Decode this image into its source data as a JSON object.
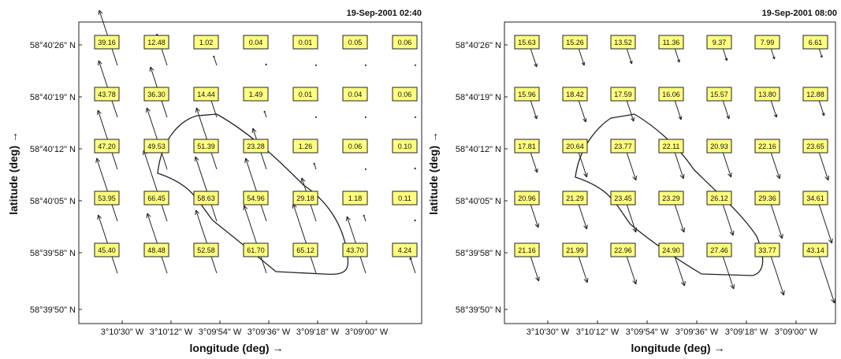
{
  "chart_data": [
    {
      "type": "quiver",
      "title": "19-Sep-2001 02:40",
      "xlabel": "longitude (deg) →",
      "ylabel": "latitude (deg) →",
      "xticks": [
        "3°10'30\" W",
        "3°10'12\" W",
        "3°09'54\" W",
        "3°09'36\" W",
        "3°09'18\" W",
        "3°09'00\" W"
      ],
      "yticks": [
        "58°40'26\" N",
        "58°40'19\" N",
        "58°40'12\" N",
        "58°40'05\" N",
        "58°39'58\" N",
        "58°39'50\" N"
      ],
      "grid_values": [
        [
          "39.16",
          "12.48",
          "1.02",
          "0.04",
          "0.01",
          "0.05",
          "0.06"
        ],
        [
          "43.78",
          "36.30",
          "14.44",
          "1.49",
          "0.01",
          "0.04",
          "0.06"
        ],
        [
          "47.20",
          "49.53",
          "51.39",
          "23.28",
          "1.26",
          "0.06",
          "0.10"
        ],
        [
          "53.95",
          "66.45",
          "58.63",
          "54.96",
          "29.18",
          "1.18",
          "0.11"
        ],
        [
          "45.40",
          "48.48",
          "52.58",
          "61.70",
          "65.12",
          "43.70",
          "4.24"
        ]
      ],
      "vector_direction": "north-west",
      "grid": false
    },
    {
      "type": "quiver",
      "title": "19-Sep-2001 08:00",
      "xlabel": "longitude (deg) →",
      "ylabel": "latitude (deg) →",
      "xticks": [
        "3°10'30\" W",
        "3°10'12\" W",
        "3°09'54\" W",
        "3°09'36\" W",
        "3°09'18\" W",
        "3°09'00\" W"
      ],
      "yticks": [
        "58°40'26\" N",
        "58°40'19\" N",
        "58°40'12\" N",
        "58°40'05\" N",
        "58°39'58\" N",
        "58°39'50\" N"
      ],
      "grid_values": [
        [
          "15.63",
          "15.26",
          "13.52",
          "11.36",
          "9.37",
          "7.99",
          "6.61"
        ],
        [
          "15.96",
          "18.42",
          "17.59",
          "16.06",
          "15.57",
          "13.80",
          "12.88"
        ],
        [
          "17.81",
          "20.64",
          "23.77",
          "22.11",
          "20.93",
          "22.16",
          "23.65"
        ],
        [
          "20.96",
          "21.29",
          "23.45",
          "23.29",
          "26.12",
          "29.36",
          "34.61"
        ],
        [
          "21.16",
          "21.99",
          "22.96",
          "24.90",
          "27.46",
          "33.77",
          "43.14"
        ]
      ],
      "vector_direction": "south-east",
      "grid": false
    }
  ],
  "colors": {
    "label_box": "#ffff80",
    "ink": "#111111"
  }
}
